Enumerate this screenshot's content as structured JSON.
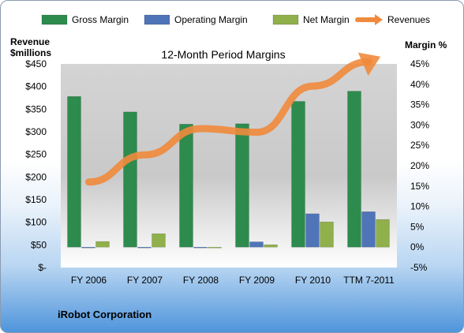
{
  "chart_data": {
    "type": "bar",
    "title": "12-Month Period Margins",
    "company": "iRobot Corporation",
    "y_left_label_line1": "Revenue",
    "y_left_label_line2": "$millions",
    "y_right_label": "Margin %",
    "categories": [
      "FY 2006",
      "FY 2007",
      "FY 2008",
      "FY 2009",
      "FY 2010",
      "TTM 7-2011"
    ],
    "y_left_ticks": [
      "$450",
      "$400",
      "$350",
      "$300",
      "$250",
      "$200",
      "$150",
      "$100",
      "$50",
      "$-"
    ],
    "y_right_ticks": [
      "45%",
      "40%",
      "35%",
      "30%",
      "25%",
      "20%",
      "15%",
      "10%",
      "5%",
      "0%",
      "-5%"
    ],
    "ylim_left": [
      0,
      450
    ],
    "ylim_right": [
      -5,
      45
    ],
    "series": [
      {
        "name": "Gross Margin",
        "kind": "bar",
        "color": "#2e8b4e",
        "values": [
          37,
          33.2,
          30.2,
          30.3,
          35.8,
          38.3
        ]
      },
      {
        "name": "Operating Margin",
        "kind": "bar",
        "color": "#4f74b8",
        "values": [
          0,
          0,
          0,
          1.3,
          8.2,
          8.7
        ]
      },
      {
        "name": "Net Margin",
        "kind": "bar",
        "color": "#8fb04a",
        "values": [
          1.4,
          3.3,
          -0.2,
          0.6,
          6.2,
          6.8
        ]
      },
      {
        "name": "Revenues",
        "kind": "line",
        "color": "#f08a3c",
        "values": [
          189,
          249,
          307,
          299,
          401,
          455
        ]
      }
    ],
    "legend_position": "top",
    "grid": false
  }
}
